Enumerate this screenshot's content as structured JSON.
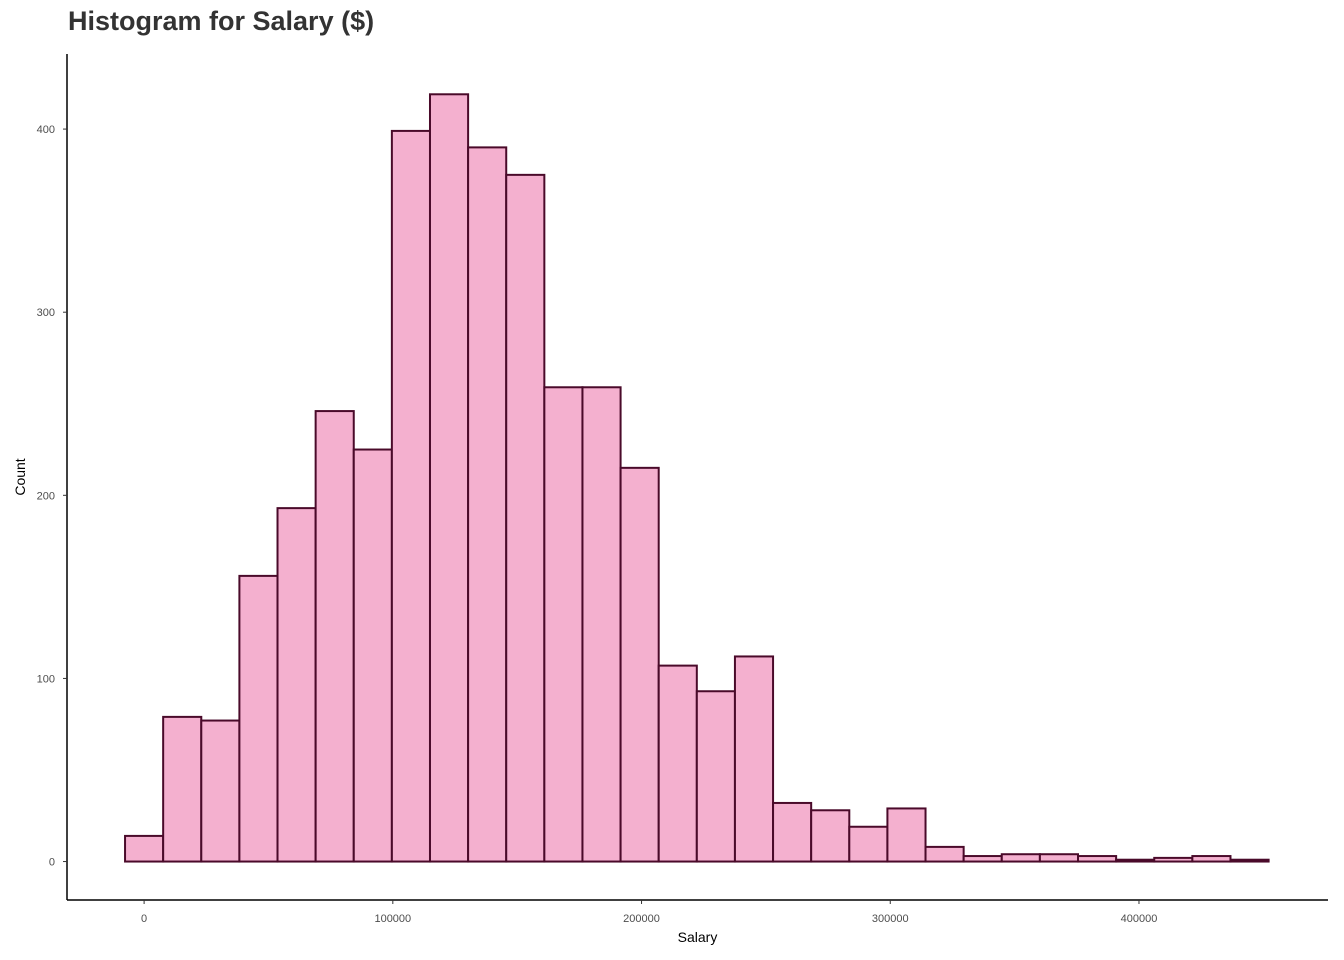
{
  "title": "Histogram for Salary ($)",
  "chart_data": {
    "type": "bar",
    "subtype": "histogram",
    "title": "Histogram for Salary ($)",
    "xlabel": "Salary",
    "ylabel": "Count",
    "bin_width": 15326,
    "bin_start": -7663,
    "counts": [
      14,
      79,
      77,
      156,
      193,
      246,
      225,
      399,
      419,
      390,
      375,
      259,
      259,
      215,
      107,
      93,
      112,
      32,
      28,
      19,
      29,
      8,
      3,
      4,
      4,
      3,
      1,
      2,
      3,
      1
    ],
    "xlim": [
      -31000,
      476000
    ],
    "ylim": [
      -21,
      441
    ],
    "x_ticks": [
      0,
      100000,
      200000,
      300000,
      400000
    ],
    "x_tick_labels": [
      "0",
      "100000",
      "200000",
      "300000",
      "400000"
    ],
    "y_ticks": [
      0,
      100,
      200,
      300,
      400
    ],
    "y_tick_labels": [
      "0",
      "100",
      "200",
      "300",
      "400"
    ],
    "grid": false,
    "legend": "none",
    "colors": {
      "fill": "#f4b0cf",
      "outline": "#4a0a2a",
      "axis": "#000000",
      "title": "#333333",
      "tick_text": "#4d4d4d"
    }
  }
}
